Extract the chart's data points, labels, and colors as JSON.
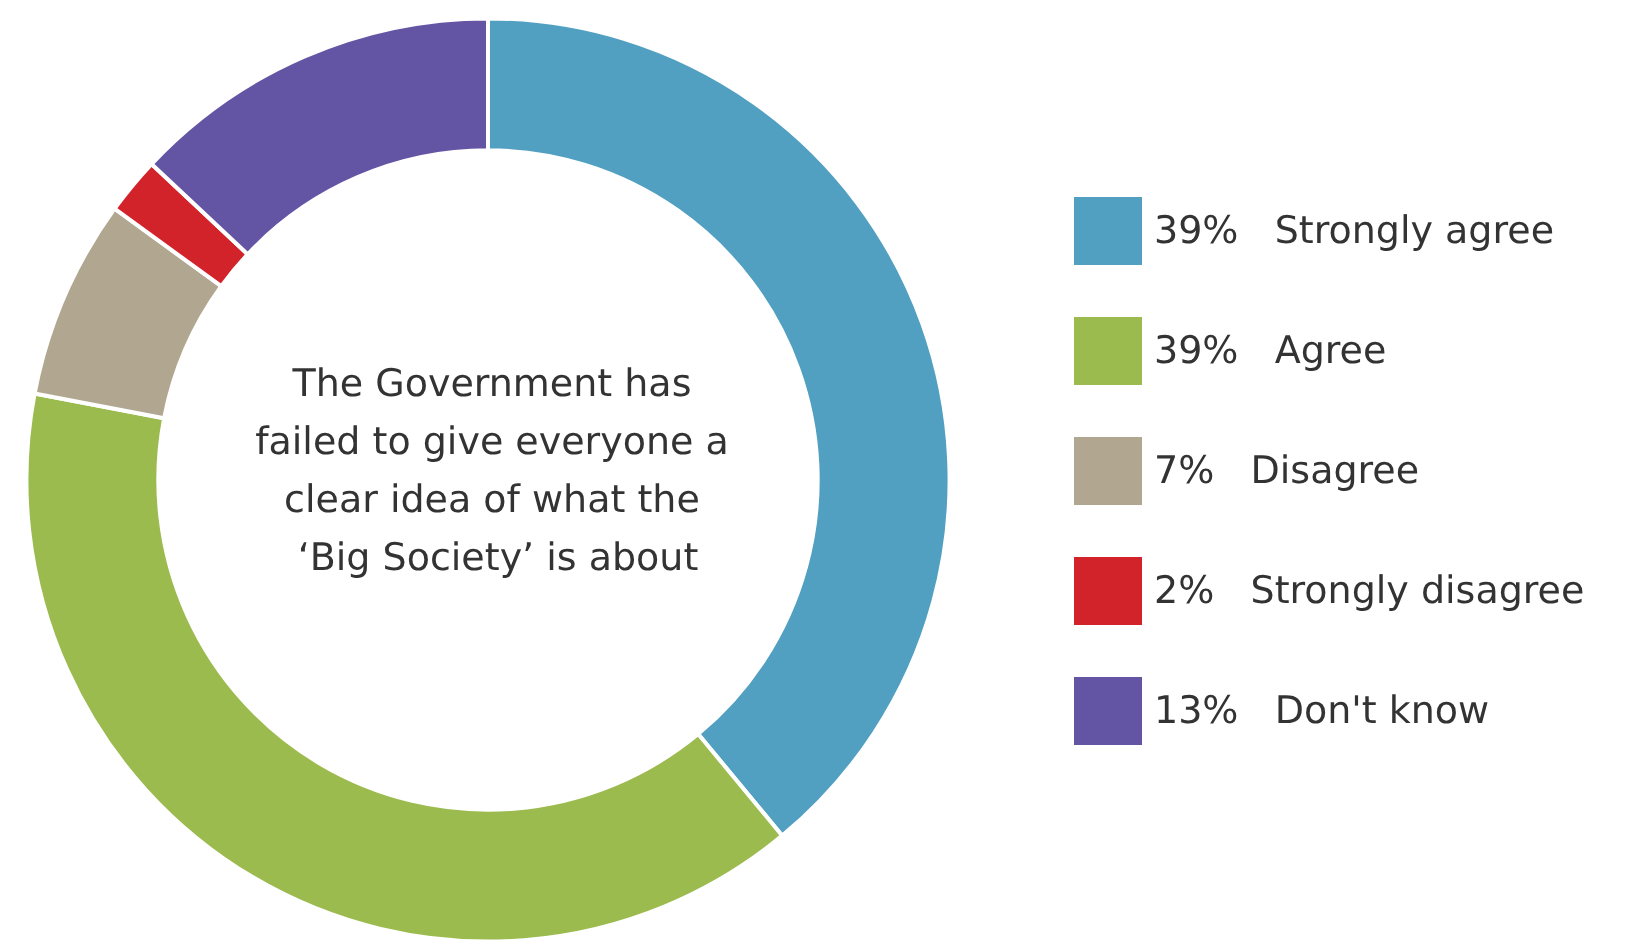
{
  "chart_data": {
    "type": "donut",
    "title": "The Government has failed to give everyone a clear idea of what the ‘Big Society’ is about",
    "categories": [
      "Strongly agree",
      "Agree",
      "Disagree",
      "Strongly disagree",
      "Don't know"
    ],
    "values": [
      39,
      39,
      7,
      2,
      13
    ],
    "value_labels": [
      "39%",
      "39%",
      "7%",
      "2%",
      "13%"
    ],
    "colors": [
      "#519fc1",
      "#9bbb4f",
      "#b1a690",
      "#d2232a",
      "#6454a4"
    ],
    "legend": "right"
  }
}
